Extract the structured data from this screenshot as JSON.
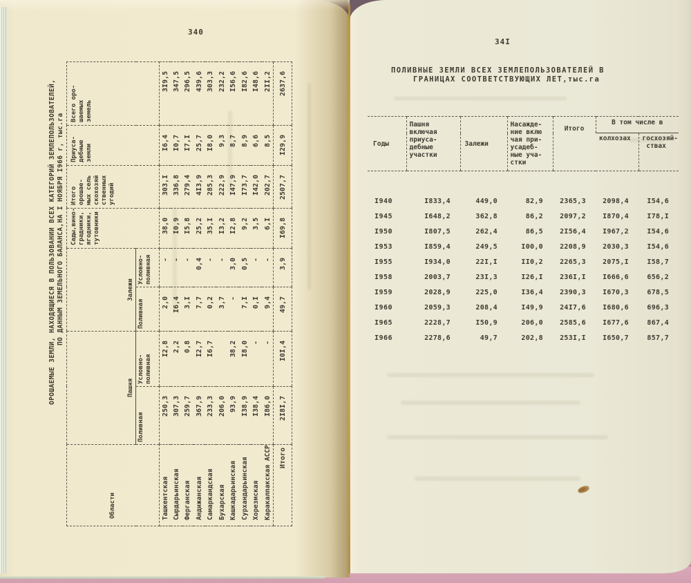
{
  "colors": {
    "left_page": "#f1e9cd",
    "right_page": "#eae8d6",
    "ink": "#3e3a30",
    "cover_pink": "#d29fb0",
    "binding": "#6f5c66",
    "gutter_line": "#c8a24c",
    "stain": "#a5814f"
  },
  "left_page": {
    "page_number": "340",
    "table": {
      "title_line1": "ОРОШАЕМЫЕ ЗЕМЛИ, НАХОДЯЩИЕСЯ В ПОЛЬЗОВАНИИ ВСЕХ КАТЕГОРИЙ ЗЕМЛЕПОЛЬЗОВАТЕЛЕЙ,",
      "title_line2": "ПО ДАННЫМ ЗЕМЕЛЬНОГО БАЛАНСА,НА I НОЯБРЯ I966 г, тыс.га",
      "headers": {
        "oblast": "Области",
        "pashnya_group": "Пашня",
        "zalezhi_group": "Залежи",
        "polivnaya": "Поливная",
        "uslovno_polivnaya": "Условно-\nполивная",
        "sady": "Сады,вино-\nградники,\nягодники,\nтутовники",
        "itogo_ugodiy": "Итого\nорошае-\nмых сель\nскохозяй\nственных\nугодий",
        "priusadebnye": "Приуса-\nдебные\nземли",
        "vsego": "Всего оро-\nшаемых\nземель"
      },
      "rows": [
        {
          "name": "Ташкентская",
          "values": [
            "250,3",
            "I2,8",
            "2,0",
            "-",
            "38,0",
            "303,I",
            "I6,4",
            "3I9,5"
          ]
        },
        {
          "name": "Сырдарьинская",
          "values": [
            "307,3",
            "2,2",
            "I6,4",
            "-",
            "I0,9",
            "336,8",
            "I0,7",
            "347,5"
          ]
        },
        {
          "name": "Ферганская",
          "values": [
            "259,7",
            "0,8",
            "3,I",
            "-",
            "I5,8",
            "279,4",
            "I7,I",
            "296,5"
          ]
        },
        {
          "name": "Андижанская",
          "values": [
            "367,9",
            "I2,7",
            "7,7",
            "0,4",
            "25,2",
            "4I3,9",
            "25,7",
            "439,6"
          ]
        },
        {
          "name": "Самаркандская",
          "values": [
            "233,3",
            "I6,7",
            "0,2",
            "-",
            "35,I",
            "285,3",
            "I8,0",
            "303,3"
          ]
        },
        {
          "name": "Бухарская",
          "values": [
            "206,0",
            "",
            "3,7",
            "-",
            "I3,2",
            "222,9",
            "9,3",
            "232,2"
          ]
        },
        {
          "name": "Кашкадарьинская",
          "values": [
            "93,9",
            "38,2",
            "-",
            "3,0",
            "I2,8",
            "I47,9",
            "8,7",
            "I56,6"
          ]
        },
        {
          "name": "Сурхандарьинская",
          "values": [
            "I38,9",
            "I8,0",
            "7,I",
            "0,5",
            "9,2",
            "I73,7",
            "8,9",
            "I82,6"
          ]
        },
        {
          "name": "Хорезмская",
          "values": [
            "I38,4",
            "-",
            "0,I",
            "-",
            "3,5",
            "I42,0",
            "6,6",
            "I48,6"
          ]
        },
        {
          "name": "Каракалпакская АССР",
          "values": [
            "I86,0",
            "-",
            "9,4",
            "-",
            "6,I",
            "202,7",
            "8,5",
            "2II,2"
          ]
        }
      ],
      "total": {
        "label": "Итого",
        "values": [
          "2I8I,7",
          "I0I,4",
          "49,7",
          "3,9",
          "I69,8",
          "2507,7",
          "I29,9",
          "2637,6"
        ]
      }
    }
  },
  "right_page": {
    "page_number": "34I",
    "table": {
      "title_line1": "ПОЛИВНЫЕ ЗЕМЛИ ВСЕХ ЗЕМЛЕПОЛЬЗОВАТЕЛЕЙ В",
      "title_line2": "ГРАНИЦАХ СООТВЕТСТВУЮЩИХ ЛЕТ,тыс.га",
      "headers": {
        "gody": "Годы",
        "pashnya": "Пашня\nвключая\nприуса-\nдебные\nучастки",
        "zalezhi": "Залежи",
        "nasazhdenie": "Насажде-\nние вклю\nчая при-\nусадеб-\nные уча-\nстки",
        "itogo": "Итого",
        "v_tom_chisle": "В том числе в",
        "kolkhozakh": "колхозах",
        "goskhozyaystvakh": "госхозяй-\n ствах"
      },
      "rows": [
        {
          "year": "I940",
          "values": [
            "I833,4",
            "449,0",
            "82,9",
            "2365,3",
            "2098,4",
            "I54,6"
          ]
        },
        {
          "year": "I945",
          "values": [
            "I648,2",
            "362,8",
            "86,2",
            "2097,2",
            "I870,4",
            "I78,I"
          ]
        },
        {
          "year": "I950",
          "values": [
            "I807,5",
            "262,4",
            "86,5",
            "2I56,4",
            "I967,2",
            "I54,6"
          ]
        },
        {
          "year": "I953",
          "values": [
            "I859,4",
            "249,5",
            "I00,0",
            "2208,9",
            "2030,3",
            "I54,6"
          ]
        },
        {
          "year": "I955",
          "values": [
            "I934,0",
            "22I,I",
            "II0,2",
            "2265,3",
            "2075,I",
            "I58,7"
          ]
        },
        {
          "year": "I958",
          "values": [
            "2003,7",
            "23I,3",
            "I26,I",
            "236I,I",
            "I666,6",
            "656,2"
          ]
        },
        {
          "year": "I959",
          "values": [
            "2028,9",
            "225,0",
            "I36,4",
            "2390,3",
            "I670,3",
            "678,5"
          ]
        },
        {
          "year": "I960",
          "values": [
            "2059,3",
            "208,4",
            "I49,9",
            "24I7,6",
            "I680,6",
            "696,3"
          ]
        },
        {
          "year": "I965",
          "values": [
            "2228,7",
            "I50,9",
            "206,0",
            "2585,6",
            "I677,6",
            "867,4"
          ]
        },
        {
          "year": "I966",
          "values": [
            "2278,6",
            "49,7",
            "202,8",
            "253I,I",
            "I650,7",
            "857,7"
          ]
        }
      ]
    }
  }
}
